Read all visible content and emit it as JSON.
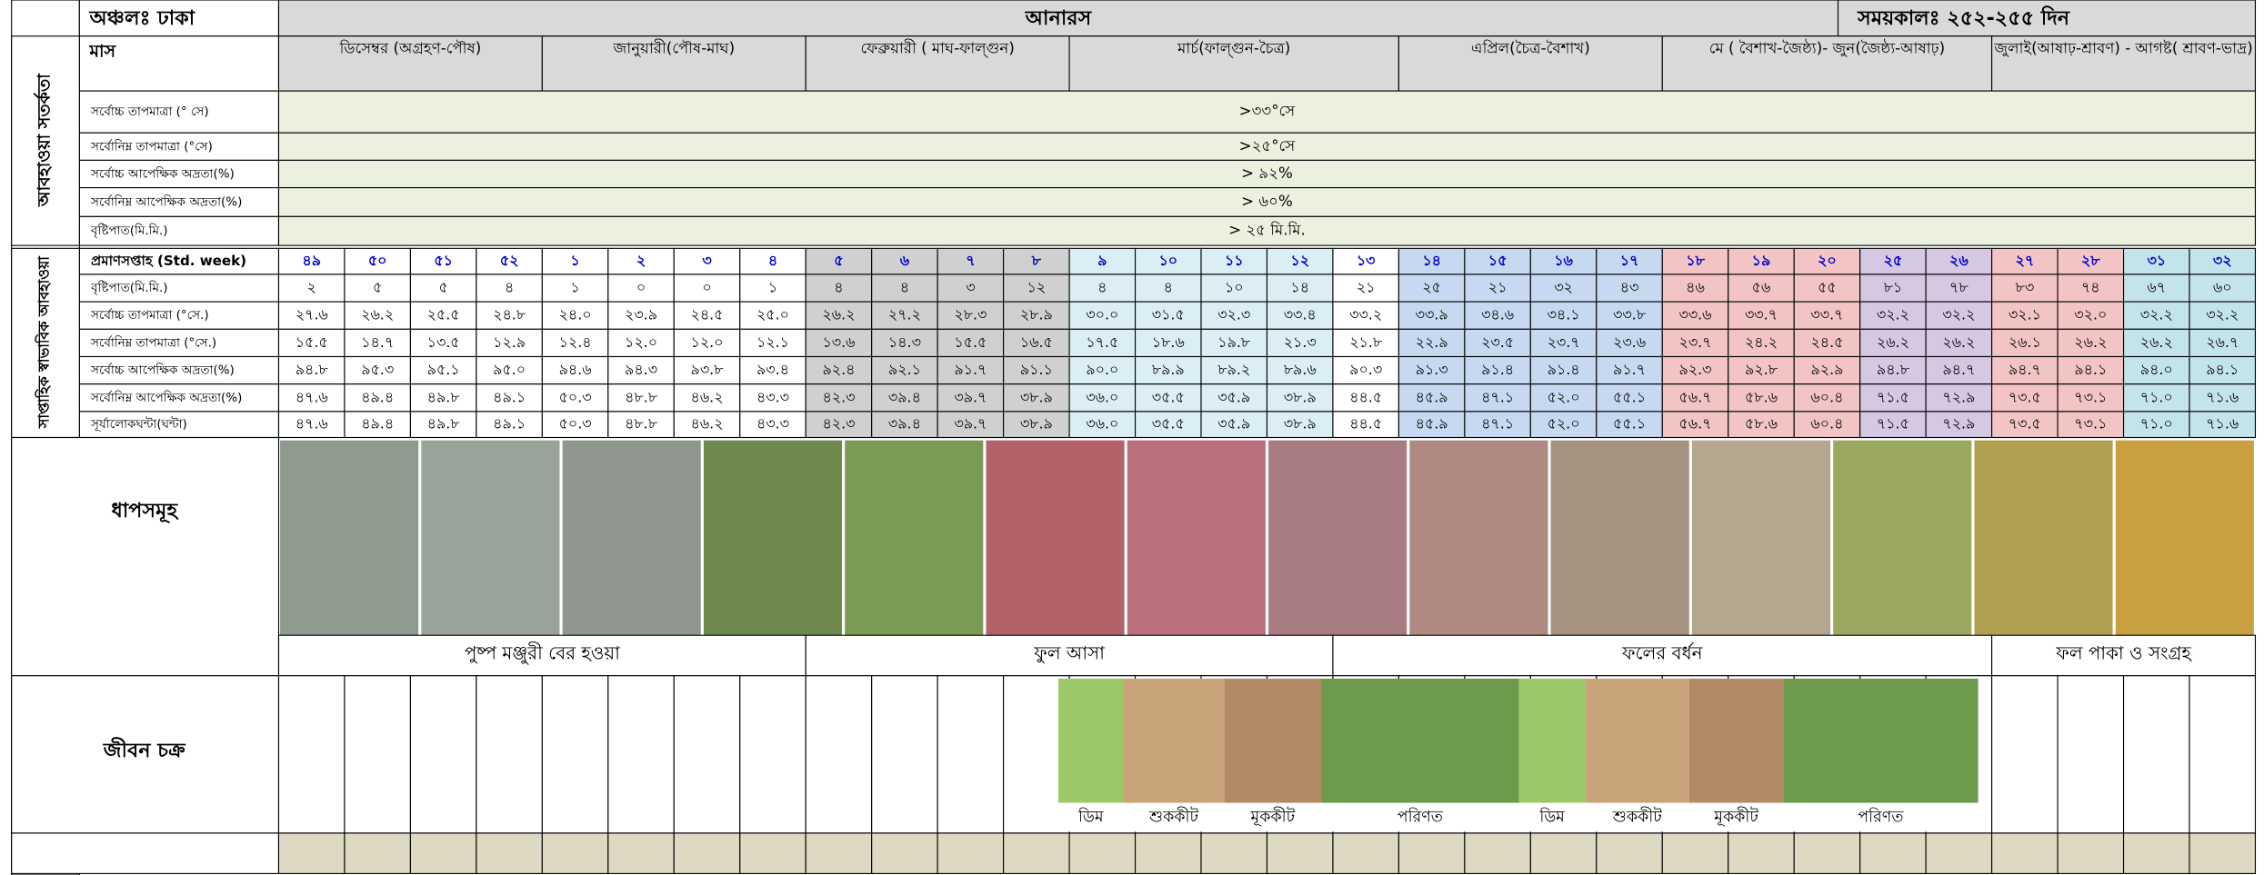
{
  "header": {
    "region": "অঞ্চলঃ ঢাকা",
    "crop": "আনারস",
    "duration": "সময়কালঃ ২৫২-২৫৫ দিন"
  },
  "weather_alert": {
    "title": "আবহাওয়া সতর্কতা",
    "month_label": "মাস",
    "months": [
      "ডিসেম্বর (অগ্রহণ-পৌষ)",
      "জানুয়ারী(পৌষ-মাঘ)",
      "ফেব্রুয়ারী ( মাঘ-ফাল্গুন)",
      "মার্চ(ফাল্গুন-চৈত্র)",
      "এপ্রিল(চৈত্র-বৈশাখ)",
      "মে ( বৈশাখ-জৈষ্ঠ্য)- জুন(জৈষ্ঠ্য-আষাঢ়)",
      "জুলাই(আষাঢ়-শ্রাবণ) - আগষ্ট( শ্রাবণ-ভাদ্র)"
    ],
    "color": "#ebf1de",
    "rows": [
      {
        "label": "সর্বোচ্চ তাপমাত্রা (° সে)",
        "value": ">৩৩°সে"
      },
      {
        "label": "সর্বোনিম্ন তাপমাত্রা (°সে)",
        "value": ">২৫°সে"
      },
      {
        "label": "সর্বোচ্চ আপেক্ষিক অদ্রতা(%)",
        "value": "> ৯২%"
      },
      {
        "label": "সর্বোনিম্ন আপেক্ষিক অদ্রতা(%)",
        "value": "> ৬০%"
      },
      {
        "label": "বৃষ্টিপাত(মি.মি.)",
        "value": "> ২৫ মি.মি."
      }
    ]
  },
  "weekly_weather": {
    "title": "সাপ্তাহিক স্বাভাবিক আবহাওয়া",
    "column_colors": [
      "#ffffff",
      "#ffffff",
      "#ffffff",
      "#ffffff",
      "#ffffff",
      "#ffffff",
      "#ffffff",
      "#ffffff",
      "#d0d0d0",
      "#d0d0d0",
      "#d0d0d0",
      "#d0d0d0",
      "#dbeef4",
      "#dbeef4",
      "#dbeef4",
      "#dbeef4",
      "#ffffff",
      "#c6d9f1",
      "#c6d9f1",
      "#c6d9f1",
      "#c6d9f1",
      "#f2c4c4",
      "#f2c4c4",
      "#f2c4c4",
      "#d4c8e2",
      "#d4c8e2",
      "#f2c4c4",
      "#f2c4c4",
      "#c4e4ec",
      "#c4e4ec"
    ],
    "rows": [
      {
        "label": "প্রমাণসপ্তাহ (Std. week)",
        "values": [
          "৪৯",
          "৫০",
          "৫১",
          "৫২",
          "১",
          "২",
          "৩",
          "৪",
          "৫",
          "৬",
          "৭",
          "৮",
          "৯",
          "১০",
          "১১",
          "১২",
          "১৩",
          "১৪",
          "১৫",
          "১৬",
          "১৭",
          "১৮",
          "১৯",
          "২০",
          "২৫",
          "২৬",
          "২৭",
          "২৮",
          "৩১",
          "৩২"
        ]
      },
      {
        "label": "বৃষ্টিপাত(মি.মি.)",
        "values": [
          "২",
          "৫",
          "৫",
          "৪",
          "১",
          "০",
          "০",
          "১",
          "৪",
          "৪",
          "৩",
          "১২",
          "৪",
          "৪",
          "১০",
          "১৪",
          "২১",
          "২৫",
          "২১",
          "৩২",
          "৪৩",
          "৪৬",
          "৫৬",
          "৫৫",
          "৮১",
          "৭৮",
          "৮৩",
          "৭৪",
          "৬৭",
          "৬০"
        ]
      },
      {
        "label": "সর্বোচ্চ তাপমাত্রা (°সে.)",
        "values": [
          "২৭.৬",
          "২৬.২",
          "২৫.৫",
          "২৪.৮",
          "২৪.০",
          "২৩.৯",
          "২৪.৫",
          "২৫.০",
          "২৬.২",
          "২৭.২",
          "২৮.৩",
          "২৮.৯",
          "৩০.০",
          "৩১.৫",
          "৩২.৩",
          "৩৩.৪",
          "৩৩.২",
          "৩৩.৯",
          "৩৪.৬",
          "৩৪.১",
          "৩৩.৮",
          "৩৩.৬",
          "৩৩.৭",
          "৩৩.৭",
          "৩২.২",
          "৩২.২",
          "৩২.১",
          "৩২.০",
          "৩২.২",
          "৩২.২"
        ]
      },
      {
        "label": "সর্বোনিম্ন তাপমাত্রা (°সে.)",
        "values": [
          "১৫.৫",
          "১৪.৭",
          "১৩.৫",
          "১২.৯",
          "১২.৪",
          "১২.০",
          "১২.০",
          "১২.১",
          "১৩.৬",
          "১৪.৩",
          "১৫.৫",
          "১৬.৫",
          "১৭.৫",
          "১৮.৬",
          "১৯.৮",
          "২১.৩",
          "২১.৮",
          "২২.৯",
          "২৩.৫",
          "২৩.৭",
          "২৩.৬",
          "২৩.৭",
          "২৪.২",
          "২৪.৫",
          "২৬.২",
          "২৬.২",
          "২৬.১",
          "২৬.২",
          "২৬.২",
          "২৬.৭"
        ]
      },
      {
        "label": "সর্বোচ্চ আপেক্ষিক অদ্রতা(%)",
        "values": [
          "৯৪.৮",
          "৯৫.৩",
          "৯৫.১",
          "৯৫.০",
          "৯৪.৬",
          "৯৪.৩",
          "৯৩.৮",
          "৯৩.৪",
          "৯২.৪",
          "৯২.১",
          "৯১.৭",
          "৯১.১",
          "৯০.০",
          "৮৯.৯",
          "৮৯.২",
          "৮৯.৬",
          "৯০.৩",
          "৯১.৩",
          "৯১.৪",
          "৯১.৪",
          "৯১.৭",
          "৯২.৩",
          "৯২.৮",
          "৯২.৯",
          "৯৪.৮",
          "৯৪.৭",
          "৯৪.৭",
          "৯৪.১",
          "৯৪.০",
          "৯৪.১"
        ]
      },
      {
        "label": "সর্বোনিম্ন আপেক্ষিক অদ্রতা(%)",
        "values": [
          "৪৭.৬",
          "৪৯.৪",
          "৪৯.৮",
          "৪৯.১",
          "৫০.৩",
          "৪৮.৮",
          "৪৬.২",
          "৪৩.৩",
          "৪২.৩",
          "৩৯.৪",
          "৩৯.৭",
          "৩৮.৯",
          "৩৬.০",
          "৩৫.৫",
          "৩৫.৯",
          "৩৮.৯",
          "৪৪.৫",
          "৪৫.৯",
          "৪৭.১",
          "৫২.০",
          "৫৫.১",
          "৫৬.৭",
          "৫৮.৬",
          "৬০.৪",
          "৭১.৫",
          "৭২.৯",
          "৭৩.৫",
          "৭৩.১",
          "৭১.০",
          "৭১.৬"
        ]
      },
      {
        "label": "সূর্যালোকঘন্টা(ঘন্টা)",
        "values": [
          "৪৭.৬",
          "৪৯.৪",
          "৪৯.৮",
          "৪৯.১",
          "৫০.৩",
          "৪৮.৮",
          "৪৬.২",
          "৪৩.৩",
          "৪২.৩",
          "৩৯.৪",
          "৩৯.৭",
          "৩৮.৯",
          "৩৬.০",
          "৩৫.৫",
          "৩৫.৯",
          "৩৮.৯",
          "৪৪.৫",
          "৪৫.৯",
          "৪৭.১",
          "৫২.০",
          "৫৫.১",
          "৫৬.৭",
          "৫৮.৬",
          "৬০.৪",
          "৭১.৫",
          "৭২.৯",
          "৭৩.৫",
          "৭৩.১",
          "৭১.০",
          "৭১.৬"
        ]
      }
    ]
  },
  "stages": {
    "title": "ধাপসমূহ",
    "items": [
      "পুষ্প মঞ্জুরী বের হওয়া",
      "ফুল আসা",
      "ফলের বর্ধন",
      "ফল পাকা ও সংগ্রহ"
    ]
  },
  "life_cycle": {
    "title": "জীবন চক্র",
    "items": [
      "ডিম",
      "শুককীট",
      "মূককীট",
      "পরিণত",
      "ডিম",
      "শুককীট",
      "মূককীট",
      "পরিণত"
    ]
  }
}
